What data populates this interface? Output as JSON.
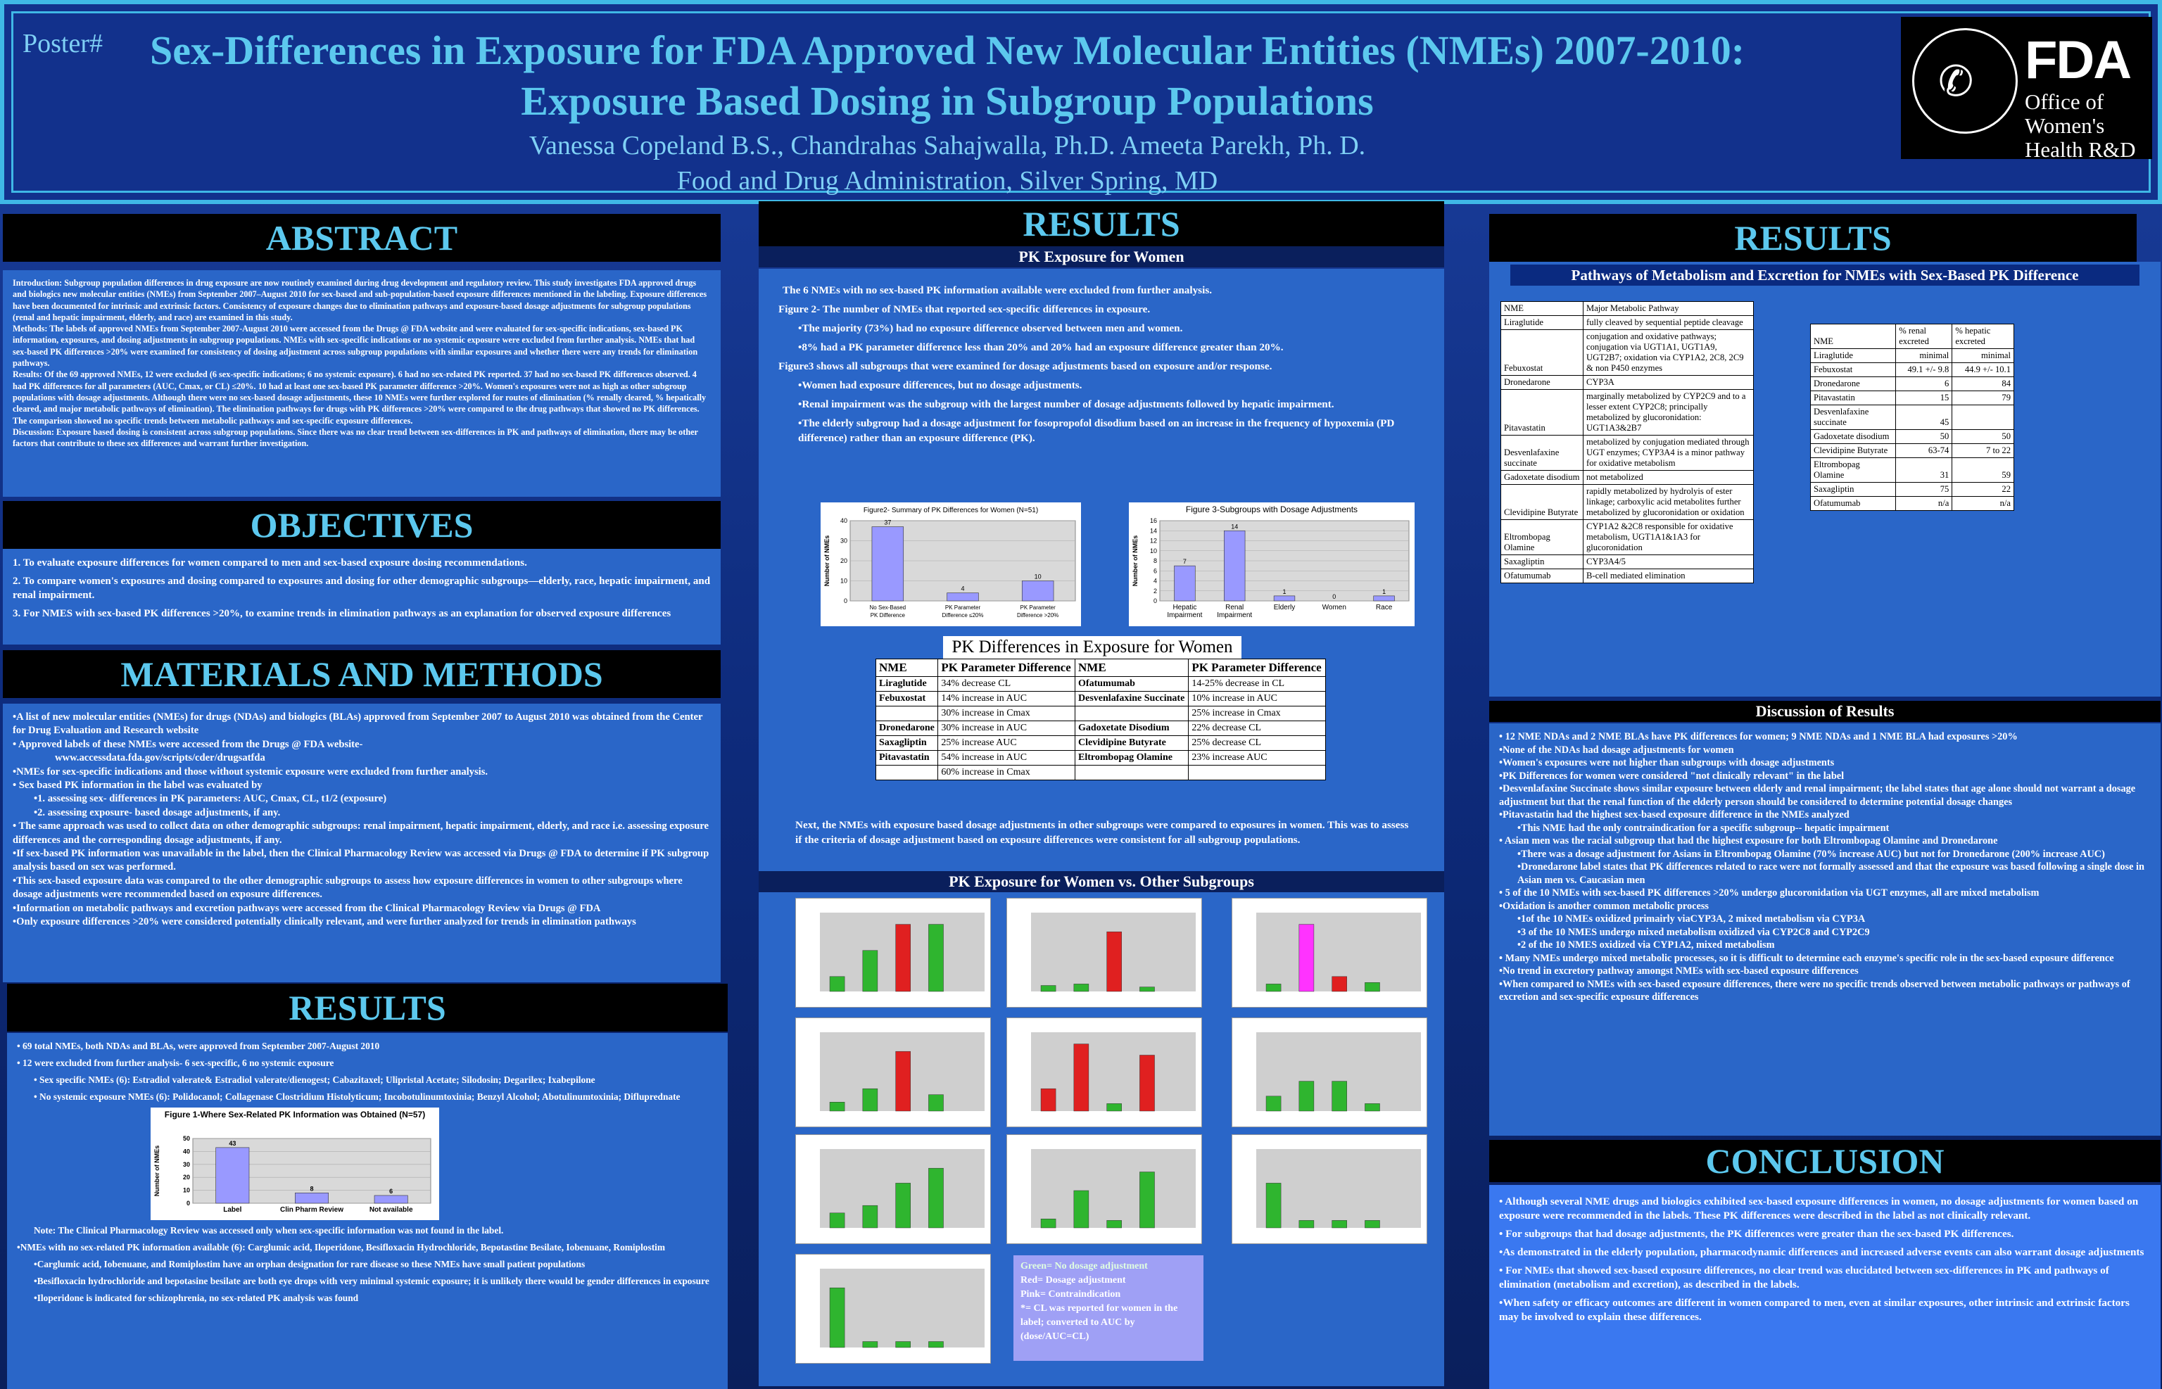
{
  "header": {
    "poster": "Poster#",
    "title_line1": "Sex-Differences in Exposure for FDA Approved New Molecular Entities (NMEs) 2007-2010:",
    "title_line2": "Exposure Based Dosing in Subgroup Populations",
    "authors": "Vanessa Copeland B.S., Chandrahas Sahajwalla, Ph.D. Ameeta Parekh, Ph. D.",
    "affiliation": "Food and Drug Administration, Silver Spring, MD",
    "logo_big": "FDA",
    "logo_sub1": "Office of",
    "logo_sub2": "Women's",
    "logo_sub3": "Health R&D"
  },
  "abstract": {
    "heading": "ABSTRACT",
    "intro": "Introduction: Subgroup population differences in drug exposure are now routinely examined during drug development and regulatory review. This study investigates FDA approved drugs and biologics new molecular entities (NMEs) from September 2007–August 2010 for sex-based and sub-population-based exposure differences mentioned in the labeling. Exposure differences have been documented for intrinsic and extrinsic factors. Consistency of exposure changes due to elimination pathways and exposure-based dosage adjustments for subgroup populations (renal and hepatic impairment, elderly, and race) are examined in this study.",
    "methods": "Methods: The labels of approved NMEs from September 2007-August 2010 were accessed from the Drugs @ FDA website and were evaluated for sex-specific indications, sex-based PK information, exposures, and dosing adjustments in subgroup populations. NMEs with sex-specific indications or no systemic exposure were excluded from further analysis. NMEs that had sex-based PK differences >20% were examined for consistency of dosing adjustment across subgroup populations with similar exposures and whether there were any trends for elimination pathways.",
    "results": "Results: Of the 69 approved NMEs, 12 were excluded (6 sex-specific indications; 6 no systemic exposure). 6 had no sex-related PK reported. 37 had no sex-based PK differences observed. 4 had PK differences for all parameters (AUC, Cmax, or CL) ≤20%. 10 had at least one sex-based PK parameter difference >20%. Women's exposures were not as high as other subgroup populations with dosage adjustments. Although there were no sex-based dosage adjustments, these 10 NMEs were further explored for routes of elimination (% renally cleared, % hepatically cleared, and major metabolic pathways of elimination). The elimination pathways for drugs with PK differences >20% were compared to the drug pathways that showed no PK differences. The comparison showed no specific trends between metabolic pathways and sex-specific exposure differences.",
    "discussion": "Discussion: Exposure based dosing is consistent across subgroup populations. Since there was no clear trend between sex-differences in PK and pathways of elimination, there may be other factors that contribute to these sex differences and warrant further investigation."
  },
  "objectives": {
    "heading": "OBJECTIVES",
    "items": [
      "1.  To evaluate exposure differences for women compared to men and sex-based exposure dosing recommendations.",
      "2.   To compare women's exposures and dosing  compared to exposures and dosing for other demographic subgroups—elderly, race, hepatic impairment, and renal impairment.",
      "3.   For NMES with sex-based PK differences >20%, to examine trends in elimination pathways as an explanation for observed exposure differences"
    ]
  },
  "methods": {
    "heading": "MATERIALS AND METHODS",
    "items": [
      "•A list of new molecular entities (NMEs) for drugs (NDAs) and biologics (BLAs) approved from September 2007 to August 2010 was obtained from the Center for Drug Evaluation and Research website",
      "•  Approved labels of these NMEs were accessed from the Drugs @ FDA website-",
      "www.accessdata.fda.gov/scripts/cder/drugsatfda",
      "•NMEs for sex-specific indications and those without systemic exposure were excluded from further analysis.",
      "• Sex based PK information in the label was evaluated by",
      "•1. assessing sex- differences in PK parameters: AUC, Cmax, CL, t1/2 (exposure)",
      "•2. assessing exposure- based dosage adjustments, if any.",
      "• The same approach was used to collect data on other demographic subgroups: renal impairment, hepatic impairment, elderly, and race i.e. assessing exposure differences and the corresponding dosage adjustments, if any.",
      "•If sex-based PK information was unavailable in the label, then the Clinical Pharmacology Review was accessed via Drugs @ FDA to determine if PK subgroup analysis based on sex was performed.",
      "•This sex-based exposure data was compared to the other demographic subgroups to assess how exposure differences in women to other subgroups where dosage adjustments were recommended based on exposure differences.",
      "•Information on metabolic pathways and excretion pathways were accessed from the Clinical Pharmacology Review via Drugs @ FDA",
      "•Only exposure differences >20% were considered potentially clinically relevant, and were further analyzed for trends in elimination pathways"
    ]
  },
  "results_left": {
    "heading": "RESULTS",
    "items": [
      "• 69 total NMEs, both NDAs and BLAs, were approved from September 2007-August 2010",
      "• 12 were excluded from further analysis- 6 sex-specific, 6 no systemic exposure",
      "• Sex specific NMEs (6): Estradiol valerate& Estradiol valerate/dienogest; Cabazitaxel; Ulipristal Acetate; Silodosin; Degarilex; Ixabepilone",
      "• No systemic exposure NMEs (6): Polidocanol; Collagenase Clostridium Histolyticum; Incobotulinumtoxinia; Benzyl Alcohol; Abotulinumtoxinia; Difluprednate"
    ],
    "note": "Note: The Clinical Pharmacology Review was accessed only when sex-specific information was not found in the label.",
    "items2": [
      "•NMEs with no sex-related PK information available (6): Carglumic acid, Iloperidone, Besifloxacin Hydrochloride, Bepotastine Besilate, Iobenuane, Romiplostim",
      "•Carglumic acid, Iobenuane, and Romiplostim have an orphan designation for rare disease so these NMEs have small patient populations",
      "•Besifloxacin hydrochloride and bepotasine besilate are both eye drops with very minimal systemic exposure; it is unlikely there would be gender differences in exposure",
      "•Iloperidone is indicated for schizophrenia, no sex-related PK analysis was found"
    ]
  },
  "results_mid": {
    "heading": "RESULTS",
    "sub1": "PK Exposure for Women",
    "lines": [
      "The 6 NMEs with no sex-based PK information available were excluded from further analysis.",
      "Figure 2- The number of NMEs that reported sex-specific differences in exposure.",
      "•The majority (73%) had no exposure difference observed between men and women.",
      "•8% had a PK parameter difference less than 20% and 20% had an exposure difference greater than 20%.",
      "Figure3 shows all subgroups that were examined for dosage adjustments based on exposure and/or response.",
      "•Women had exposure differences, but no dosage adjustments.",
      "•Renal impairment was the subgroup with the largest number of dosage adjustments  followed by hepatic impairment.",
      "•The elderly subgroup had a dosage adjustment for fosopropofol disodium based on an increase in the frequency of hypoxemia (PD difference) rather than an exposure difference (PK)."
    ],
    "table_title": "PK Differences in Exposure for Women",
    "table_headers": [
      "NME",
      "PK Parameter Difference",
      "NME",
      "PK Parameter Difference"
    ],
    "table_rows": [
      [
        "Liraglutide",
        "34% decrease CL",
        "Ofatumumab",
        "14-25% decrease in CL"
      ],
      [
        "Febuxostat",
        "14% increase in AUC",
        "Desvenlafaxine Succinate",
        "10% increase in AUC"
      ],
      [
        "",
        "30% increase in Cmax",
        "",
        "25% increase in Cmax"
      ],
      [
        "Dronedarone",
        "30% increase in AUC",
        "Gadoxetate Disodium",
        "22% decrease CL"
      ],
      [
        "Saxagliptin",
        "25% increase AUC",
        "Clevidipine Butyrate",
        "25% decrease CL"
      ],
      [
        "Pitavastatin",
        "54% increase in AUC",
        "Eltrombopag Olamine",
        "23% increase AUC"
      ],
      [
        "",
        "60% increase in Cmax",
        "",
        ""
      ]
    ],
    "next": "Next, the NMEs with exposure based dosage adjustments in other subgroups were compared to exposures in women. This was to assess if the criteria of dosage adjustment based on exposure differences were consistent for all subgroup populations.",
    "sub2": "PK Exposure for Women vs. Other Subgroups",
    "legend": [
      "Green= No dosage adjustment",
      "Red= Dosage adjustment",
      "Pink= Contraindication",
      "*= CL was reported for women in the label; converted to AUC by (dose/AUC=CL)"
    ]
  },
  "results_right": {
    "heading": "RESULTS",
    "sub1": "Pathways of Metabolism and Excretion for NMEs with Sex-Based PK Difference",
    "path_headers": [
      "NME",
      "Major Metabolic Pathway"
    ],
    "path_rows": [
      [
        "Liraglutide",
        "fully cleaved by sequential peptide cleavage"
      ],
      [
        "Febuxostat",
        "conjugation and oxidative pathways; conjugation via UGT1A1, UGT1A9, UGT2B7; oxidation via CYP1A2, 2C8, 2C9 & non P450 enzymes"
      ],
      [
        "Dronedarone",
        "CYP3A"
      ],
      [
        "Pitavastatin",
        "marginally metabolized by CYP2C9 and to a lesser extent CYP2C8; principally metabolized by glucoronidation: UGT1A3&2B7"
      ],
      [
        "Desvenlafaxine succinate",
        "metabolized by conjugation mediated through UGT enzymes; CYP3A4 is a minor pathway for oxidative metabolism"
      ],
      [
        "Gadoxetate disodium",
        "not metabolized"
      ],
      [
        "Clevidipine Butyrate",
        "rapidly metabolized by hydrolyis of ester linkage; carboxylic acid metabolites further metabolized by glucoronidation or oxidation"
      ],
      [
        "Eltrombopag Olamine",
        "CYP1A2 &2C8 responsible for oxidative metabolism, UGT1A1&1A3 for glucoronidation"
      ],
      [
        "Saxagliptin",
        "CYP3A4/5"
      ],
      [
        "Ofatumumab",
        "B-cell mediated elimination"
      ]
    ],
    "excr_headers": [
      "NME",
      "% renal excreted",
      "% hepatic excreted"
    ],
    "excr_rows": [
      [
        "Liraglutide",
        "minimal",
        "minimal"
      ],
      [
        "Febuxostat",
        "49.1 +/- 9.8",
        "44.9 +/- 10.1"
      ],
      [
        "Dronedarone",
        "6",
        "84"
      ],
      [
        "Pitavastatin",
        "15",
        "79"
      ],
      [
        "Desvenlafaxine succinate",
        "45",
        ""
      ],
      [
        "Gadoxetate disodium",
        "50",
        "50"
      ],
      [
        "Clevidipine Butyrate",
        "63-74",
        "7 to 22"
      ],
      [
        "Eltrombopag Olamine",
        "31",
        "59"
      ],
      [
        "Saxagliptin",
        "75",
        "22"
      ],
      [
        "Ofatumumab",
        "n/a",
        "n/a"
      ]
    ],
    "sub2": "Discussion of Results",
    "discussion": [
      "• 12 NME NDAs and 2 NME BLAs have PK differences for women; 9 NME NDAs and 1 NME BLA  had exposures >20%",
      "•None of the NDAs had dosage adjustments for women",
      "•Women's exposures were not higher than subgroups with dosage adjustments",
      "•PK Differences for women were considered \"not clinically relevant\" in the label",
      "•Desvenlafaxine Succinate shows similar exposure between elderly and renal impairment; the label states that age alone should not warrant a dosage adjustment but that the renal function of the elderly person should be considered to determine potential dosage changes",
      "•Pitavastatin had the highest  sex-based exposure difference in the NMEs analyzed",
      "•This NME had the only contraindication  for a specific subgroup-- hepatic impairment",
      "• Asian men was the racial subgroup that had the highest exposure for both Eltrombopag Olamine and Dronedarone",
      "•There was a dosage adjustment for Asians in Eltrombopag Olamine (70% increase AUC) but not for Dronedarone (200% increase AUC)",
      "•Dronedarone label states that PK differences related to race were not formally assessed and that the exposure was based following a single dose in Asian men vs. Caucasian men",
      "• 5 of the 10 NMEs with sex-based PK differences >20% undergo glucoronidation via UGT enzymes, all are mixed metabolism",
      "•Oxidation is another common metabolic process",
      "•1of the 10 NMEs oxidized  primairly viaCYP3A, 2 mixed metabolism via CYP3A",
      "•3 of the 10 NMES undergo mixed metabolism oxidized via CYP2C8 and CYP2C9",
      "•2 of the 10 NMES oxidized via CYP1A2, mixed metabolism",
      "• Many NMEs undergo mixed metabolic processes, so it is difficult to determine each enzyme's specific role in the sex-based exposure difference",
      "•No trend in excretory pathway amongst NMEs with sex-based exposure differences",
      "•When compared to NMEs with sex-based exposure differences, there were no specific trends observed between metabolic pathways or pathways of excretion and sex-specific exposure differences"
    ]
  },
  "conclusion": {
    "heading": "CONCLUSION",
    "items": [
      "• Although several NME drugs and biologics  exhibited  sex-based exposure differences in women, no dosage adjustments for women based on exposure were recommended in the labels. These PK differences were described in the label as not clinically relevant.",
      "• For subgroups that had dosage adjustments, the PK differences were greater than the sex-based PK differences.",
      "•As demonstrated in the elderly population, pharmacodynamic differences and increased adverse events can also warrant dosage adjustments",
      "• For NMEs that showed sex-based exposure differences, no clear trend was elucidated between sex-differences in PK and pathways of elimination (metabolism and excretion), as described in the labels.",
      "•When safety or efficacy outcomes are different in women compared to men, even at similar exposures, other intrinsic and extrinsic factors may be involved to explain these differences."
    ]
  },
  "chart_data": [
    {
      "type": "bar",
      "title": "Figure 1-Where Sex-Related PK Information was Obtained (N=57)",
      "categories": [
        "Label",
        "Clin Pharm Review",
        "Not available"
      ],
      "values": [
        43,
        8,
        6
      ],
      "ylabel": "Number of NMEs",
      "ylim": [
        0,
        50
      ],
      "yticks": [
        0,
        10,
        20,
        30,
        40,
        50
      ],
      "color": "#9999ff"
    },
    {
      "type": "bar",
      "title": "Figure2- Summary of PK Differences for Women (N=51)",
      "categories": [
        "No Sex-Based PK Difference",
        "PK Parameter Difference ≤20%",
        "PK Parameter Difference >20%"
      ],
      "values": [
        37,
        4,
        10
      ],
      "ylabel": "Number of NMEs",
      "ylim": [
        0,
        40
      ],
      "color": "#9999ff"
    },
    {
      "type": "bar",
      "title": "Figure 3-Subgroups with Dosage Adjustments",
      "categories": [
        "Hepatic Impairment",
        "Renal Impairment",
        "Elderly",
        "Women",
        "Race"
      ],
      "values": [
        7,
        14,
        1,
        0,
        1
      ],
      "ylabel": "Number of NMEs",
      "ylim": [
        0,
        16
      ],
      "yticks": [
        0,
        2,
        4,
        6,
        8,
        10,
        12,
        14,
        16
      ],
      "color": "#9999ff"
    }
  ]
}
